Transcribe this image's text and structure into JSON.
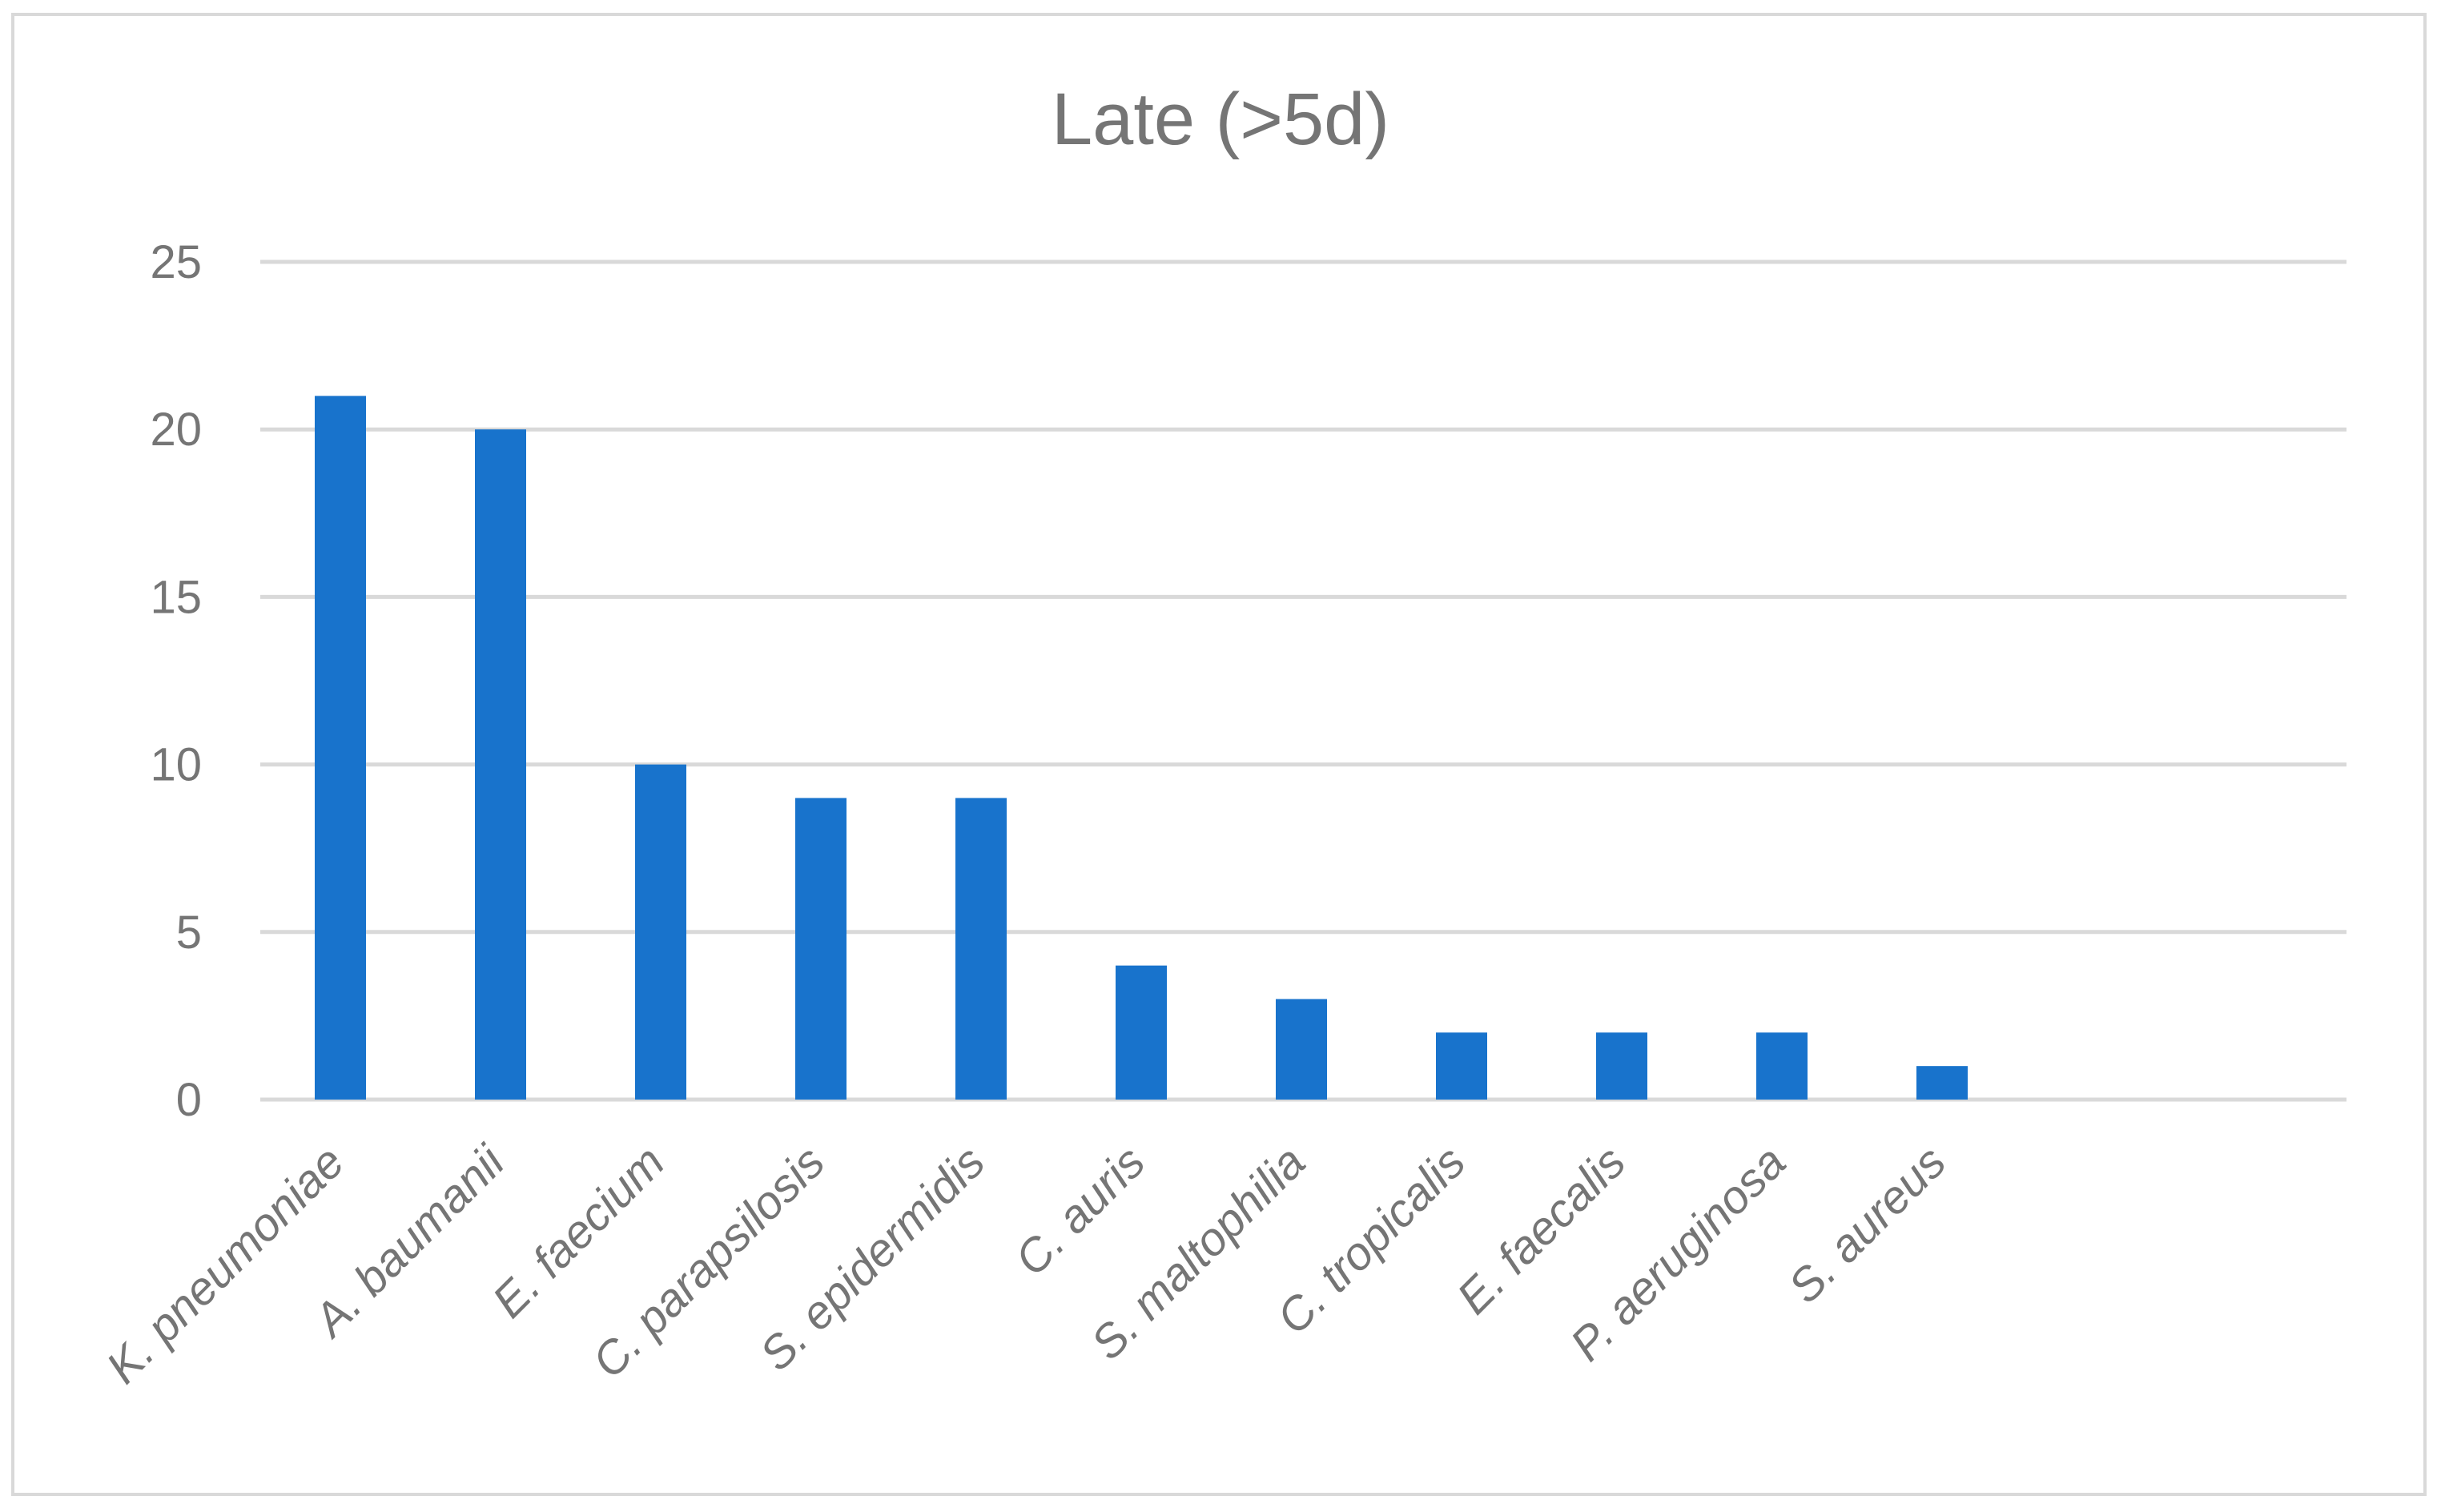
{
  "chart_data": {
    "type": "bar",
    "title": "Late (>5d)",
    "xlabel": "",
    "ylabel": "",
    "categories": [
      "K. pneumoniae",
      "A. baumanii",
      "E. faecium",
      "C. parapsilosis",
      "S. epidermidis",
      "C. auris",
      "S. maltophilia",
      "C. tropicalis",
      "E. faecalis",
      "P. aeruginosa",
      "S. aureus"
    ],
    "values": [
      21,
      20,
      10,
      9,
      9,
      4,
      3,
      2,
      2,
      2,
      1
    ],
    "ylim": [
      0,
      25
    ],
    "yticks": [
      "0",
      "5",
      "10",
      "15",
      "20",
      "25"
    ],
    "grid": true,
    "legend": "none",
    "colors": {
      "bar": "#1873CC",
      "grid": "#d9d9d9",
      "text": "#757575"
    }
  }
}
